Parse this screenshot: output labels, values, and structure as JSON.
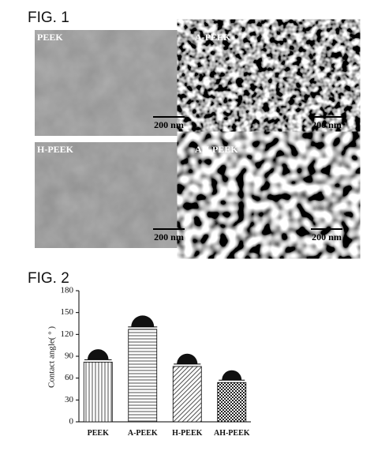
{
  "fig1": {
    "title": "FIG. 1",
    "panels": [
      {
        "label": "PEEK",
        "scale": "200 nm"
      },
      {
        "label": "A-PEEK",
        "scale": "200 nm"
      },
      {
        "label": "H-PEEK",
        "scale": "200 nm"
      },
      {
        "label": "AH-PEEK",
        "scale": "200 nm"
      }
    ]
  },
  "chart_data": {
    "type": "bar",
    "title": "FIG. 2",
    "ylabel": "Contact angle( ° )",
    "categories": [
      "PEEK",
      "A-PEEK",
      "H-PEEK",
      "AH-PEEK"
    ],
    "values": [
      82,
      127,
      76,
      54
    ],
    "ylim": [
      0,
      180
    ],
    "yticks": [
      0,
      30,
      60,
      90,
      120,
      150,
      180
    ]
  }
}
